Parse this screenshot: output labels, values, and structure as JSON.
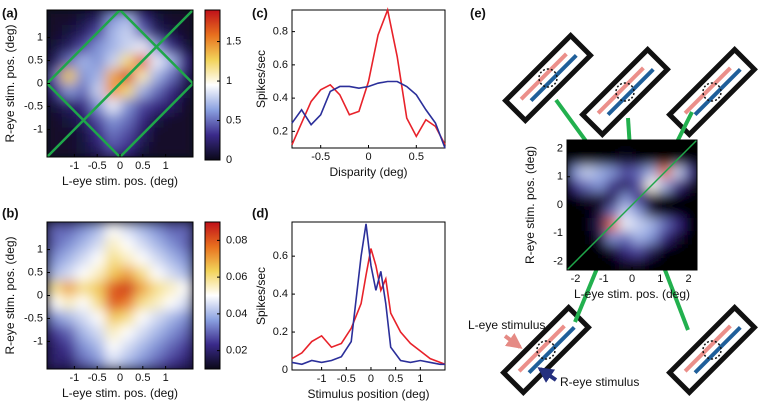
{
  "chart_data": [
    {
      "type": "heatmap",
      "panel": "(a)",
      "xlabel": "L-eye stim. pos. (deg)",
      "ylabel": "R-eye stim. pos. (deg)",
      "xlim": [
        -1.6,
        1.6
      ],
      "ylim": [
        -1.6,
        1.6
      ],
      "xticks": [
        -1,
        -0.5,
        0,
        0.5,
        1
      ],
      "yticks": [
        -1,
        -0.5,
        0,
        0.5,
        1
      ],
      "zlim": [
        0,
        1.9
      ],
      "zticks": [
        0,
        0.5,
        1,
        1.5
      ],
      "colorbar": true,
      "guide_color": "#1fa64a",
      "colormap": [
        "#0a0818",
        "#3a2a8a",
        "#8aa0e0",
        "#ffffff",
        "#f2d35a",
        "#e8701e",
        "#c0101a"
      ],
      "z": [
        [
          0.05,
          0.05,
          0.1,
          0.2,
          0.6,
          0.7,
          0.3,
          0.1,
          0.05,
          0.05
        ],
        [
          0.05,
          0.1,
          0.2,
          0.4,
          0.7,
          0.8,
          0.5,
          0.2,
          0.1,
          0.05
        ],
        [
          0.1,
          0.2,
          0.4,
          0.6,
          0.7,
          0.8,
          0.9,
          0.6,
          0.3,
          0.1
        ],
        [
          0.2,
          0.5,
          0.7,
          0.6,
          0.8,
          1.2,
          1.7,
          0.9,
          0.7,
          0.3
        ],
        [
          0.5,
          1.3,
          0.6,
          0.7,
          1.4,
          1.8,
          1.1,
          0.7,
          0.5,
          0.2
        ],
        [
          0.3,
          0.6,
          0.5,
          0.8,
          1.5,
          1.2,
          0.7,
          0.5,
          0.3,
          0.1
        ],
        [
          0.1,
          0.2,
          0.3,
          0.6,
          0.9,
          0.6,
          0.4,
          0.3,
          0.2,
          0.05
        ],
        [
          0.05,
          0.1,
          0.2,
          0.4,
          0.6,
          0.5,
          0.3,
          0.1,
          0.05,
          0.05
        ],
        [
          0.05,
          0.05,
          0.1,
          0.3,
          0.5,
          0.4,
          0.2,
          0.05,
          0.05,
          0.05
        ],
        [
          0.05,
          0.05,
          0.1,
          0.2,
          0.4,
          0.3,
          0.1,
          0.05,
          0.05,
          0.05
        ]
      ]
    },
    {
      "type": "heatmap",
      "panel": "(b)",
      "xlabel": "L-eye stim. pos. (deg)",
      "ylabel": "R-eye stim. pos. (deg)",
      "xlim": [
        -1.6,
        1.6
      ],
      "ylim": [
        -1.6,
        1.6
      ],
      "xticks": [
        -1,
        -0.5,
        0,
        0.5,
        1
      ],
      "yticks": [
        -1,
        -0.5,
        0,
        0.5,
        1
      ],
      "zlim": [
        0.01,
        0.09
      ],
      "zticks": [
        0.02,
        0.04,
        0.06,
        0.08
      ],
      "colorbar": true,
      "colormap": [
        "#0a0818",
        "#3a2a8a",
        "#8aa0e0",
        "#ffffff",
        "#f2d35a",
        "#e8701e",
        "#c0101a"
      ],
      "z": [
        [
          0.03,
          0.03,
          0.035,
          0.04,
          0.05,
          0.045,
          0.04,
          0.035,
          0.03,
          0.03
        ],
        [
          0.03,
          0.035,
          0.04,
          0.045,
          0.055,
          0.05,
          0.045,
          0.04,
          0.035,
          0.03
        ],
        [
          0.035,
          0.04,
          0.045,
          0.05,
          0.06,
          0.055,
          0.05,
          0.045,
          0.04,
          0.035
        ],
        [
          0.04,
          0.045,
          0.05,
          0.055,
          0.065,
          0.07,
          0.06,
          0.05,
          0.045,
          0.04
        ],
        [
          0.06,
          0.07,
          0.06,
          0.065,
          0.08,
          0.085,
          0.07,
          0.06,
          0.055,
          0.05
        ],
        [
          0.05,
          0.055,
          0.05,
          0.06,
          0.08,
          0.075,
          0.06,
          0.055,
          0.05,
          0.045
        ],
        [
          0.035,
          0.04,
          0.045,
          0.05,
          0.065,
          0.06,
          0.05,
          0.045,
          0.04,
          0.035
        ],
        [
          0.025,
          0.03,
          0.04,
          0.045,
          0.055,
          0.05,
          0.045,
          0.04,
          0.035,
          0.03
        ],
        [
          0.02,
          0.025,
          0.035,
          0.04,
          0.05,
          0.045,
          0.04,
          0.035,
          0.03,
          0.025
        ],
        [
          0.02,
          0.02,
          0.03,
          0.035,
          0.045,
          0.04,
          0.035,
          0.03,
          0.025,
          0.02
        ]
      ]
    },
    {
      "type": "line",
      "panel": "(c)",
      "xlabel": "Disparity (deg)",
      "ylabel": "Spikes/sec",
      "xlim": [
        -0.8,
        0.8
      ],
      "ylim": [
        0.1,
        0.93
      ],
      "xticks": [
        -0.5,
        0,
        0.5
      ],
      "yticks": [
        0.2,
        0.4,
        0.6,
        0.8
      ],
      "x": [
        -0.8,
        -0.7,
        -0.6,
        -0.5,
        -0.4,
        -0.3,
        -0.2,
        -0.1,
        0,
        0.1,
        0.2,
        0.3,
        0.4,
        0.5,
        0.6,
        0.7,
        0.8
      ],
      "series": [
        {
          "color": "#e8222a",
          "values": [
            0.12,
            0.25,
            0.38,
            0.45,
            0.48,
            0.42,
            0.3,
            0.32,
            0.5,
            0.78,
            0.93,
            0.65,
            0.28,
            0.17,
            0.27,
            0.23,
            0.12
          ]
        },
        {
          "color": "#2b2f9a",
          "values": [
            0.25,
            0.33,
            0.24,
            0.3,
            0.44,
            0.47,
            0.47,
            0.46,
            0.47,
            0.49,
            0.5,
            0.5,
            0.47,
            0.42,
            0.33,
            0.25,
            0.1
          ]
        }
      ]
    },
    {
      "type": "line",
      "panel": "(d)",
      "xlabel": "Stimulus position (deg)",
      "ylabel": "Spikes/sec",
      "xlim": [
        -1.6,
        1.5
      ],
      "ylim": [
        0,
        0.78
      ],
      "xticks": [
        -1,
        -0.5,
        0,
        0.5,
        1
      ],
      "yticks": [
        0,
        0.2,
        0.4,
        0.6
      ],
      "x": [
        -1.6,
        -1.4,
        -1.2,
        -1.0,
        -0.8,
        -0.6,
        -0.4,
        -0.2,
        -0.1,
        0,
        0.1,
        0.2,
        0.3,
        0.4,
        0.6,
        0.8,
        1.0,
        1.2,
        1.4,
        1.5
      ],
      "series": [
        {
          "color": "#e8222a",
          "values": [
            0.06,
            0.09,
            0.15,
            0.18,
            0.12,
            0.14,
            0.22,
            0.35,
            0.5,
            0.64,
            0.55,
            0.42,
            0.48,
            0.3,
            0.2,
            0.14,
            0.1,
            0.06,
            0.04,
            0.03
          ]
        },
        {
          "color": "#2b2f9a",
          "values": [
            0.04,
            0.03,
            0.05,
            0.04,
            0.05,
            0.07,
            0.15,
            0.6,
            0.77,
            0.55,
            0.42,
            0.52,
            0.35,
            0.12,
            0.05,
            0.04,
            0.05,
            0.04,
            0.03,
            0.03
          ]
        }
      ]
    },
    {
      "type": "heatmap",
      "panel": "(e)",
      "xlabel": "L-eye stim. pos. (deg)",
      "ylabel": "R-eye stim. pos. (deg)",
      "xlim": [
        -2.3,
        2.3
      ],
      "ylim": [
        -2.3,
        2.3
      ],
      "xticks": [
        -2,
        -1,
        0,
        1,
        2
      ],
      "yticks": [
        -2,
        -1,
        0,
        1,
        2
      ],
      "zlim": [
        0,
        1.9
      ],
      "colorbar": false,
      "diagonal_color": "#1fa64a",
      "colormap": [
        "#000000",
        "#3a2a8a",
        "#8aa0e0",
        "#ffffff",
        "#f2d35a",
        "#e8701e",
        "#c0101a"
      ],
      "annotations": [
        "L-eye stimulus",
        "R-eye stimulus"
      ],
      "z": [
        [
          0,
          0,
          0,
          0,
          0,
          0,
          0,
          0,
          0,
          0
        ],
        [
          0,
          0,
          0,
          0,
          0.1,
          0,
          0,
          0,
          0,
          0
        ],
        [
          0.6,
          0.8,
          0.7,
          0.6,
          0.4,
          0.5,
          0.7,
          1.6,
          0.8,
          0.4
        ],
        [
          0.3,
          0.5,
          0.6,
          0.3,
          0.2,
          0.4,
          1.0,
          0.7,
          0.3,
          0.1
        ],
        [
          0,
          0.1,
          0.1,
          0.2,
          0.6,
          0.3,
          0.1,
          0,
          0,
          0
        ],
        [
          0,
          0,
          0.1,
          0.5,
          0.8,
          0.6,
          0.1,
          0,
          0,
          0
        ],
        [
          0,
          0,
          0.2,
          1.6,
          0.9,
          0.8,
          0.7,
          0.5,
          0.3,
          0
        ],
        [
          0,
          0,
          0.1,
          0.6,
          0.5,
          0.7,
          0.6,
          0.3,
          0.1,
          0
        ],
        [
          0,
          0,
          0,
          0.1,
          0.3,
          0.4,
          0.2,
          0,
          0,
          0
        ],
        [
          0,
          0,
          0,
          0,
          0.1,
          0.1,
          0,
          0,
          0,
          0
        ]
      ]
    }
  ]
}
